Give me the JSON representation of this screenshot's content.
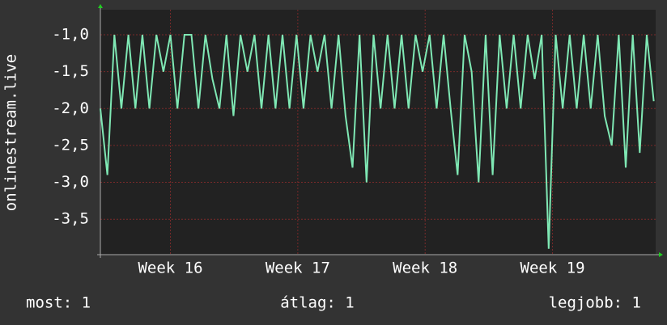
{
  "chart_data": {
    "type": "line",
    "y_label": "onlinestream.live",
    "x": [
      15.45,
      15.505,
      15.56,
      15.615,
      15.67,
      15.725,
      15.78,
      15.835,
      15.89,
      15.945,
      16.0,
      16.055,
      16.11,
      16.165,
      16.22,
      16.275,
      16.33,
      16.385,
      16.44,
      16.495,
      16.55,
      16.605,
      16.66,
      16.715,
      16.77,
      16.825,
      16.88,
      16.935,
      16.99,
      17.045,
      17.1,
      17.155,
      17.21,
      17.265,
      17.32,
      17.375,
      17.43,
      17.485,
      17.54,
      17.595,
      17.65,
      17.705,
      17.76,
      17.815,
      17.87,
      17.925,
      17.98,
      18.035,
      18.09,
      18.145,
      18.2,
      18.255,
      18.31,
      18.365,
      18.42,
      18.475,
      18.53,
      18.585,
      18.64,
      18.695,
      18.75,
      18.805,
      18.86,
      18.915,
      18.97,
      19.025,
      19.08,
      19.135,
      19.19,
      19.245,
      19.3,
      19.355,
      19.41,
      19.465,
      19.52,
      19.575,
      19.63,
      19.685,
      19.74,
      19.795
    ],
    "series": [
      {
        "color": "#7fe8b4",
        "values": [
          -2.0,
          -2.9,
          -1.0,
          -2.0,
          -1.0,
          -2.0,
          -1.0,
          -2.0,
          -1.0,
          -1.5,
          -1.0,
          -2.0,
          -1.0,
          -1.0,
          -2.0,
          -1.0,
          -1.6,
          -2.0,
          -1.0,
          -2.1,
          -1.0,
          -1.5,
          -1.0,
          -2.0,
          -1.0,
          -2.0,
          -1.0,
          -2.0,
          -1.0,
          -2.0,
          -1.0,
          -1.5,
          -1.0,
          -2.0,
          -1.0,
          -2.1,
          -2.8,
          -1.0,
          -3.0,
          -1.0,
          -2.0,
          -1.0,
          -2.0,
          -1.0,
          -2.0,
          -1.0,
          -1.5,
          -1.0,
          -2.0,
          -1.0,
          -2.0,
          -2.9,
          -1.0,
          -1.5,
          -3.0,
          -1.0,
          -2.9,
          -1.0,
          -2.0,
          -1.0,
          -2.0,
          -1.0,
          -1.6,
          -1.0,
          -3.9,
          -1.0,
          -2.0,
          -1.0,
          -2.0,
          -1.0,
          -2.0,
          -1.0,
          -2.1,
          -2.5,
          -1.0,
          -2.8,
          -1.0,
          -2.6,
          -1.0,
          -1.9
        ]
      }
    ],
    "xlim": [
      15.45,
      19.81
    ],
    "xticks": [
      {
        "value": 16,
        "label": "Week 16"
      },
      {
        "value": 17,
        "label": "Week 17"
      },
      {
        "value": 18,
        "label": "Week 18"
      },
      {
        "value": 19,
        "label": "Week 19"
      }
    ],
    "ylim": [
      -3.98,
      -0.66
    ],
    "yticks": [
      {
        "value": -1.0,
        "label": "-1,0"
      },
      {
        "value": -1.5,
        "label": "-1,5"
      },
      {
        "value": -2.0,
        "label": "-2,0"
      },
      {
        "value": -2.5,
        "label": "-2,5"
      },
      {
        "value": -3.0,
        "label": "-3,0"
      },
      {
        "value": -3.5,
        "label": "-3,5"
      }
    ],
    "grid": true,
    "stats": [
      "most: 1",
      "átlag: 1",
      "legjobb: 1"
    ]
  }
}
